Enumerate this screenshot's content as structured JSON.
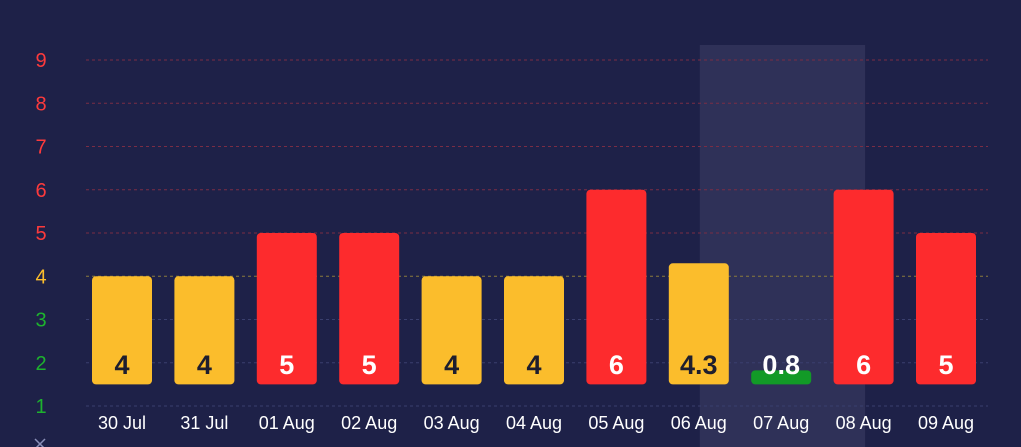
{
  "chart_data": {
    "type": "bar",
    "title": "",
    "xlabel": "",
    "ylabel": "",
    "categories": [
      "30 Jul",
      "31 Jul",
      "01 Aug",
      "02 Aug",
      "03 Aug",
      "04 Aug",
      "05 Aug",
      "06 Aug",
      "07 Aug",
      "08 Aug",
      "09 Aug"
    ],
    "values": [
      4,
      4,
      5,
      5,
      4,
      4,
      6,
      4.3,
      0.8,
      6,
      5
    ],
    "labels": [
      "4",
      "4",
      "5",
      "5",
      "4",
      "4",
      "6",
      "4.3",
      "0.8",
      "6",
      "5"
    ],
    "bar_colors": [
      "#fbbd2c",
      "#fbbd2c",
      "#fd2b2d",
      "#fd2b2d",
      "#fbbd2c",
      "#fbbd2c",
      "#fd2b2d",
      "#fbbd2c",
      "#129a27",
      "#fd2b2d",
      "#fd2b2d"
    ],
    "label_colors": [
      "#1e1e2e",
      "#1e1e2e",
      "#ffffff",
      "#ffffff",
      "#1e1e2e",
      "#1e1e2e",
      "#ffffff",
      "#1e1e2e",
      "#ffffff",
      "#ffffff",
      "#ffffff"
    ],
    "highlighted_category": "07 Aug",
    "y_ticks": [
      {
        "label": "1",
        "value": 1,
        "color": "#1db32e"
      },
      {
        "label": "2",
        "value": 2,
        "color": "#1db32e"
      },
      {
        "label": "3",
        "value": 3,
        "color": "#1db32e"
      },
      {
        "label": "4",
        "value": 4,
        "color": "#fbbd2c"
      },
      {
        "label": "5",
        "value": 5,
        "color": "#fd3a3c"
      },
      {
        "label": "6",
        "value": 6,
        "color": "#fd3a3c"
      },
      {
        "label": "7",
        "value": 7,
        "color": "#fd3a3c"
      },
      {
        "label": "8",
        "value": 8,
        "color": "#fd3a3c"
      },
      {
        "label": "9",
        "value": 9,
        "color": "#fd3a3c"
      }
    ],
    "ylim": [
      1,
      9
    ],
    "bar_baseline": 1.5,
    "grid": true,
    "colors": {
      "background": "#1e2148",
      "highlight": "#2f3158",
      "grid_low": "#3a3f6e",
      "grid_mid": "#8a7b3c",
      "grid_high": "#7a2d45",
      "axis_marker": "#8a8fb8"
    }
  }
}
